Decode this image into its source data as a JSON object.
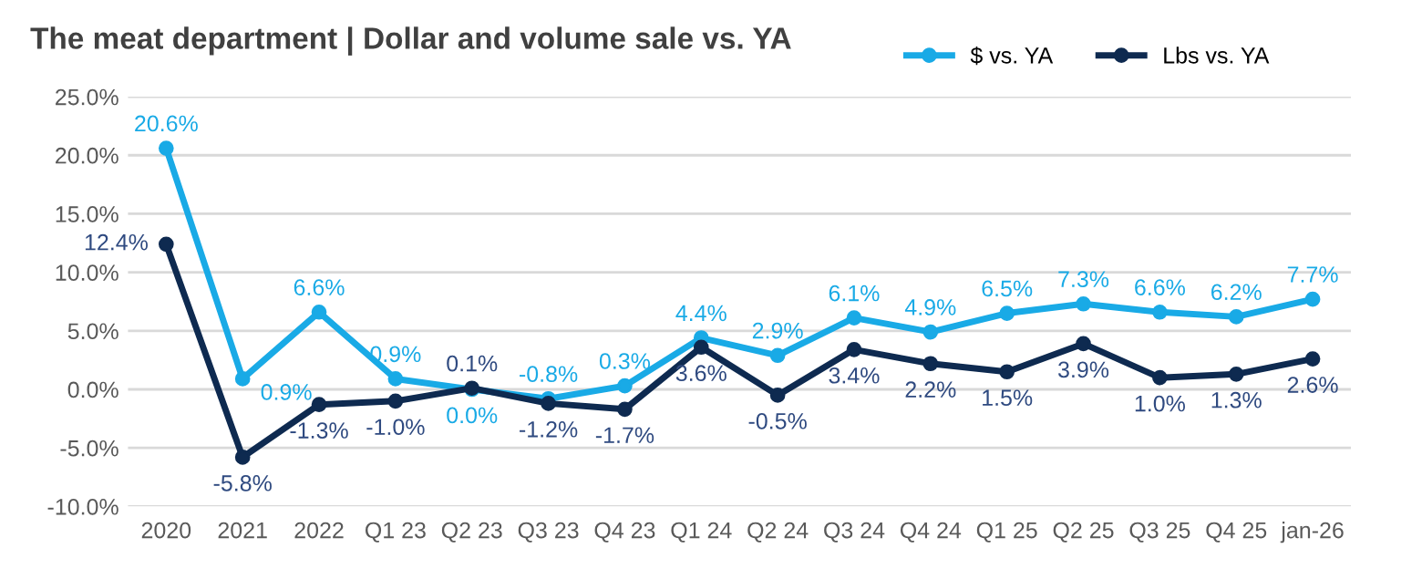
{
  "chart_data": {
    "type": "line",
    "title": "The meat department | Dollar and volume sale vs. YA",
    "categories": [
      "2020",
      "2021",
      "2022",
      "Q1 23",
      "Q2 23",
      "Q3 23",
      "Q4 23",
      "Q1 24",
      "Q2 24",
      "Q3 24",
      "Q4 24",
      "Q1 25",
      "Q2 25",
      "Q3 25",
      "Q4 25",
      "jan-26"
    ],
    "series": [
      {
        "name": "$ vs. YA",
        "color": "#19aae6",
        "values": [
          20.6,
          0.9,
          6.6,
          0.9,
          0.0,
          -0.8,
          0.3,
          4.4,
          2.9,
          6.1,
          4.9,
          6.5,
          7.3,
          6.6,
          6.2,
          7.7
        ],
        "value_labels": [
          "20.6%",
          "0.9%",
          "6.6%",
          "0.9%",
          "0.0%",
          "-0.8%",
          "0.3%",
          "4.4%",
          "2.9%",
          "6.1%",
          "4.9%",
          "6.5%",
          "7.3%",
          "6.6%",
          "6.2%",
          "7.7%"
        ]
      },
      {
        "name": "Lbs vs. YA",
        "color": "#0e2a50",
        "values": [
          12.4,
          -5.8,
          -1.3,
          -1.0,
          0.1,
          -1.2,
          -1.7,
          3.6,
          -0.5,
          3.4,
          2.2,
          1.5,
          3.9,
          1.0,
          1.3,
          2.6
        ],
        "value_labels": [
          "12.4%",
          "-5.8%",
          "-1.3%",
          "-1.0%",
          "0.1%",
          "-1.2%",
          "-1.7%",
          "3.6%",
          "-0.5%",
          "3.4%",
          "2.2%",
          "1.5%",
          "3.9%",
          "1.0%",
          "1.3%",
          "2.6%"
        ]
      }
    ],
    "ylim": [
      -10,
      25
    ],
    "yticks": [
      {
        "value": -10,
        "label": "-10.0%"
      },
      {
        "value": -5,
        "label": "-5.0%"
      },
      {
        "value": 0,
        "label": "0.0%"
      },
      {
        "value": 5,
        "label": "5.0%"
      },
      {
        "value": 10,
        "label": "10.0%"
      },
      {
        "value": 15,
        "label": "15.0%"
      },
      {
        "value": 20,
        "label": "20.0%"
      },
      {
        "value": 25,
        "label": "25.0%"
      }
    ],
    "grid": "y",
    "legend": "top right",
    "marker": "circle",
    "line_style": "solid"
  }
}
